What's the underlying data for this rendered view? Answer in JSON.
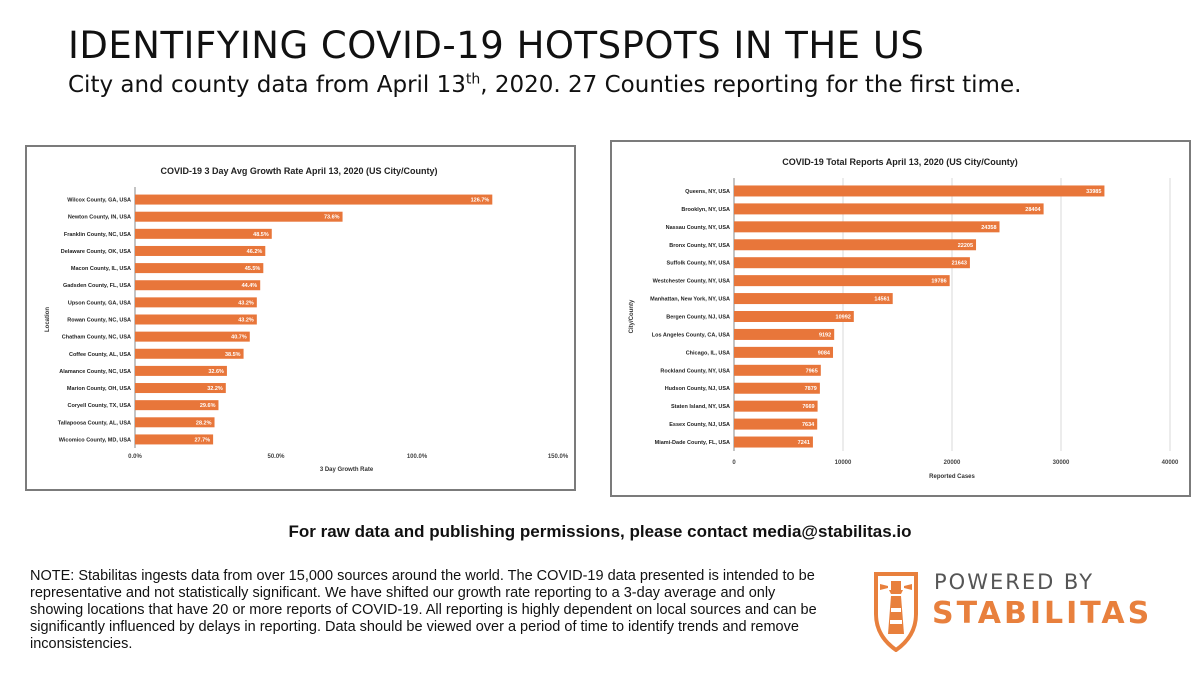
{
  "header": {
    "title": "IDENTIFYING COVID-19 HOTSPOTS IN THE US",
    "subtitle_pre": "City and county data from April 13",
    "subtitle_sup": "th",
    "subtitle_post": ", 2020. 27 Counties reporting for the first time."
  },
  "colors": {
    "bar": "#e8763a",
    "accent": "#e8803d",
    "panel_border": "#7b7b7b"
  },
  "chart_data": [
    {
      "type": "bar",
      "orientation": "horizontal",
      "title": "COVID-19 3 Day Avg Growth Rate April 13, 2020 (US City/County)",
      "xlabel": "3 Day Growth Rate",
      "ylabel": "Location",
      "xlim": [
        0,
        150
      ],
      "ticks": [
        "0.0%",
        "50.0%",
        "100.0%",
        "150.0%"
      ],
      "categories": [
        "Wilcox County, GA, USA",
        "Newton County, IN, USA",
        "Franklin County, NC, USA",
        "Delaware County, OK, USA",
        "Macon County, IL, USA",
        "Gadsden County, FL, USA",
        "Upson County, GA, USA",
        "Rowan County, NC, USA",
        "Chatham County, NC, USA",
        "Coffee County, AL, USA",
        "Alamance County, NC, USA",
        "Marion County, OH, USA",
        "Coryell County, TX, USA",
        "Tallapoosa County, AL, USA",
        "Wicomico County, MD, USA"
      ],
      "values": [
        126.7,
        73.6,
        48.5,
        46.2,
        45.5,
        44.4,
        43.2,
        43.2,
        40.7,
        38.5,
        32.6,
        32.2,
        29.6,
        28.2,
        27.7
      ],
      "value_labels": [
        "126.7%",
        "73.6%",
        "48.5%",
        "46.2%",
        "45.5%",
        "44.4%",
        "43.2%",
        "43.2%",
        "40.7%",
        "38.5%",
        "32.6%",
        "32.2%",
        "29.6%",
        "28.2%",
        "27.7%"
      ]
    },
    {
      "type": "bar",
      "orientation": "horizontal",
      "title": "COVID-19 Total Reports April 13, 2020 (US City/County)",
      "xlabel": "Reported Cases",
      "ylabel": "City/County",
      "xlim": [
        0,
        40000
      ],
      "ticks": [
        "0",
        "10000",
        "20000",
        "30000",
        "40000"
      ],
      "grid": true,
      "categories": [
        "Queens, NY, USA",
        "Brooklyn, NY, USA",
        "Nassau County, NY, USA",
        "Bronx County, NY, USA",
        "Suffolk County, NY, USA",
        "Westchester County, NY, USA",
        "Manhattan, New York, NY, USA",
        "Bergen County, NJ, USA",
        "Los Angeles County, CA, USA",
        "Chicago, IL, USA",
        "Rockland County, NY, USA",
        "Hudson County, NJ, USA",
        "Staten Island, NY, USA",
        "Essex County, NJ, USA",
        "Miami-Dade County, FL, USA"
      ],
      "values": [
        33985,
        28404,
        24358,
        22205,
        21643,
        19786,
        14561,
        10992,
        9192,
        9084,
        7965,
        7879,
        7669,
        7634,
        7241
      ],
      "value_labels": [
        "33985",
        "28404",
        "24358",
        "22205",
        "21643",
        "19786",
        "14561",
        "10992",
        "9192",
        "9084",
        "7965",
        "7879",
        "7669",
        "7634",
        "7241"
      ]
    }
  ],
  "footer": {
    "contact": "For raw data and publishing permissions, please contact media@stabilitas.io",
    "note": "NOTE: Stabilitas ingests data from over 15,000 sources around the world. The COVID-19 data presented is intended to be representative and not statistically significant. We have shifted our growth rate reporting to a 3-day average and only showing locations that have 20 or more reports of COVID-19.  All reporting is highly dependent on local sources and can be significantly influenced by delays in reporting. Data should be viewed over a period of time to identify trends and remove inconsistencies.",
    "powered_by": "POWERED BY",
    "brand": "STABILITAS",
    "logo_icon": "lighthouse-icon"
  }
}
